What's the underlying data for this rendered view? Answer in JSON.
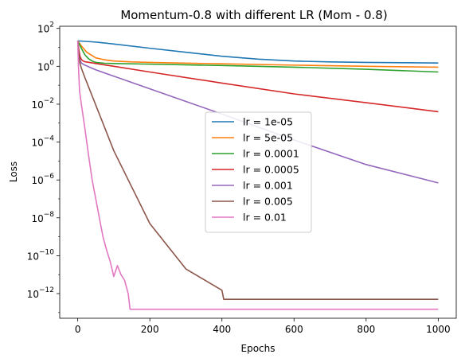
{
  "chart_data": {
    "type": "line",
    "title": "Momentum-0.8 with different LR  (Mom - 0.8)",
    "xlabel": "Epochs",
    "ylabel": "Loss",
    "yscale": "log",
    "xlim": [
      -50,
      1050
    ],
    "ylim": [
      5e-14,
      130
    ],
    "x_ticks": [
      0,
      200,
      400,
      600,
      800,
      1000
    ],
    "x_tick_labels": [
      "0",
      "200",
      "400",
      "600",
      "800",
      "1000"
    ],
    "y_ticks": [
      1e-12,
      1e-10,
      1e-08,
      1e-06,
      0.0001,
      0.01,
      1,
      100
    ],
    "y_tick_labels": [
      {
        "base": "10",
        "exp": "−12"
      },
      {
        "base": "10",
        "exp": "−10"
      },
      {
        "base": "10",
        "exp": "−8"
      },
      {
        "base": "10",
        "exp": "−6"
      },
      {
        "base": "10",
        "exp": "−4"
      },
      {
        "base": "10",
        "exp": "−2"
      },
      {
        "base": "10",
        "exp": "0"
      },
      {
        "base": "10",
        "exp": "2"
      }
    ],
    "grid": false,
    "legend_position": "center-right",
    "series": [
      {
        "name": "lr = 1e-05",
        "color": "#1f77b4",
        "x": [
          0,
          50,
          100,
          200,
          300,
          400,
          500,
          600,
          700,
          800,
          900,
          1000
        ],
        "y": [
          22,
          19,
          15,
          9,
          5.5,
          3.4,
          2.4,
          1.9,
          1.7,
          1.6,
          1.55,
          1.5
        ]
      },
      {
        "name": "lr = 5e-05",
        "color": "#ff7f0e",
        "x": [
          0,
          10,
          25,
          50,
          75,
          100,
          150,
          200,
          400,
          600,
          800,
          1000
        ],
        "y": [
          22,
          12,
          5.5,
          2.8,
          2.2,
          1.9,
          1.7,
          1.6,
          1.35,
          1.15,
          1.0,
          0.9
        ]
      },
      {
        "name": "lr = 0.0001",
        "color": "#2ca02c",
        "x": [
          0,
          10,
          20,
          30,
          40,
          50,
          75,
          100,
          200,
          400,
          600,
          800,
          1000
        ],
        "y": [
          22,
          9,
          4,
          2.5,
          1.9,
          1.6,
          1.45,
          1.4,
          1.3,
          1.1,
          0.9,
          0.7,
          0.5
        ]
      },
      {
        "name": "lr = 0.0005",
        "color": "#d62728",
        "x": [
          0,
          3,
          6,
          10,
          15,
          20,
          50,
          100,
          200,
          400,
          600,
          800,
          1000
        ],
        "y": [
          22,
          8,
          3.5,
          2.3,
          1.9,
          1.75,
          1.4,
          1.0,
          0.5,
          0.13,
          0.035,
          0.012,
          0.004
        ]
      },
      {
        "name": "lr = 0.001",
        "color": "#9467bd",
        "x": [
          0,
          3,
          6,
          10,
          20,
          50,
          100,
          200,
          400,
          600,
          800,
          1000
        ],
        "y": [
          22,
          5,
          2.2,
          1.5,
          1.15,
          0.65,
          0.3,
          0.065,
          0.003,
          0.00013,
          6.5e-06,
          7e-07
        ]
      },
      {
        "name": "lr = 0.005",
        "color": "#8c564b",
        "x": [
          0,
          3,
          6,
          10,
          20,
          50,
          100,
          200,
          300,
          400,
          405,
          500,
          600,
          700,
          800,
          900,
          1000
        ],
        "y": [
          22,
          5,
          1.5,
          0.8,
          0.25,
          0.009,
          3.5e-05,
          5e-09,
          2e-11,
          1.5e-12,
          5e-13,
          5e-13,
          5e-13,
          5e-13,
          5e-13,
          5e-13,
          5e-13
        ]
      },
      {
        "name": "lr = 0.01",
        "color": "#e377c2",
        "x": [
          0,
          2,
          5,
          10,
          20,
          30,
          40,
          50,
          60,
          70,
          80,
          90,
          100,
          110,
          120,
          130,
          140,
          145,
          200,
          300,
          400,
          500,
          600,
          700,
          800,
          900,
          1000
        ],
        "y": [
          22,
          1,
          0.05,
          0.01,
          0.0005,
          2e-05,
          1e-06,
          1e-07,
          1e-08,
          1e-09,
          2e-10,
          5e-11,
          8e-12,
          3e-11,
          1e-11,
          5e-12,
          1e-12,
          1.5e-13,
          1.5e-13,
          1.5e-13,
          1.5e-13,
          1.5e-13,
          1.5e-13,
          1.5e-13,
          1.5e-13,
          1.5e-13,
          1.5e-13
        ]
      }
    ]
  }
}
